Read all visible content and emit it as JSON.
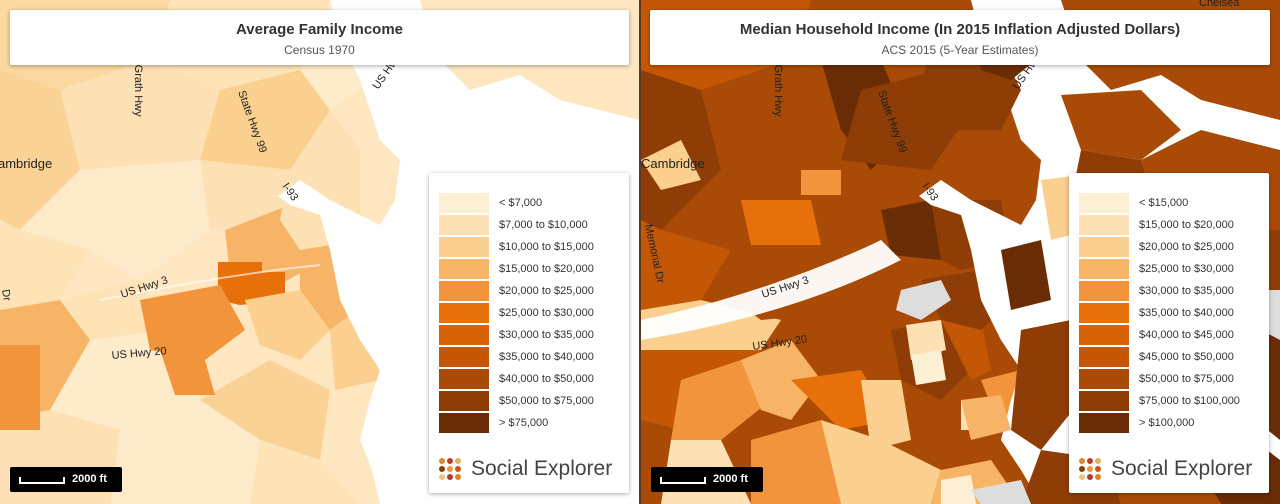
{
  "left_map": {
    "title": "Average Family Income",
    "subtitle": "Census 1970",
    "legend": [
      {
        "label": "< $7,000",
        "color": "#fdefd4"
      },
      {
        "label": "$7,000 to $10,000",
        "color": "#fde0b4"
      },
      {
        "label": "$10,000 to $15,000",
        "color": "#fbcf8f"
      },
      {
        "label": "$15,000 to $20,000",
        "color": "#f7b466"
      },
      {
        "label": "$20,000 to $25,000",
        "color": "#f2943b"
      },
      {
        "label": "$25,000 to $30,000",
        "color": "#e8700a"
      },
      {
        "label": "$30,000 to $35,000",
        "color": "#d86206"
      },
      {
        "label": "$35,000 to $40,000",
        "color": "#c35706"
      },
      {
        "label": "$40,000 to $50,000",
        "color": "#a94b06"
      },
      {
        "label": "$50,000 to $75,000",
        "color": "#8e3d06"
      },
      {
        "label": "> $75,000",
        "color": "#6a2c05"
      }
    ],
    "place_labels": [
      "Cambridge",
      "McGrath Hwy",
      "State Hwy 99",
      "US Hwy",
      "I-93",
      "US Hwy 3",
      "US Hwy 20",
      "Dr"
    ],
    "scale": "2000 ft",
    "brand": "Social Explorer"
  },
  "right_map": {
    "title": "Median Household Income (In 2015 Inflation Adjusted Dollars)",
    "subtitle": "ACS 2015 (5-Year Estimates)",
    "legend": [
      {
        "label": "< $15,000",
        "color": "#fdefd4"
      },
      {
        "label": "$15,000 to $20,000",
        "color": "#fde0b4"
      },
      {
        "label": "$20,000 to $25,000",
        "color": "#fbcf8f"
      },
      {
        "label": "$25,000 to $30,000",
        "color": "#f7b466"
      },
      {
        "label": "$30,000 to $35,000",
        "color": "#f2943b"
      },
      {
        "label": "$35,000 to $40,000",
        "color": "#e8700a"
      },
      {
        "label": "$40,000 to $45,000",
        "color": "#d86206"
      },
      {
        "label": "$45,000 to $50,000",
        "color": "#c35706"
      },
      {
        "label": "$50,000 to $75,000",
        "color": "#a94b06"
      },
      {
        "label": "$75,000 to $100,000",
        "color": "#8e3d06"
      },
      {
        "label": "> $100,000",
        "color": "#6a2c05"
      }
    ],
    "place_labels": [
      "Cambridge",
      "Chelsea",
      "McGrath Hwy",
      "State Hwy 99",
      "US Hwy",
      "I-93",
      "US Hwy 3",
      "US Hwy 20",
      "Memorial Dr"
    ],
    "scale": "2000 ft",
    "brand": "Social Explorer"
  },
  "brand_dot_colors": [
    "#e08a2c",
    "#c0392b",
    "#e8b04a",
    "#8e3d06",
    "#f2943b",
    "#d35400",
    "#f5c27a",
    "#b03a2e",
    "#e67e22"
  ]
}
